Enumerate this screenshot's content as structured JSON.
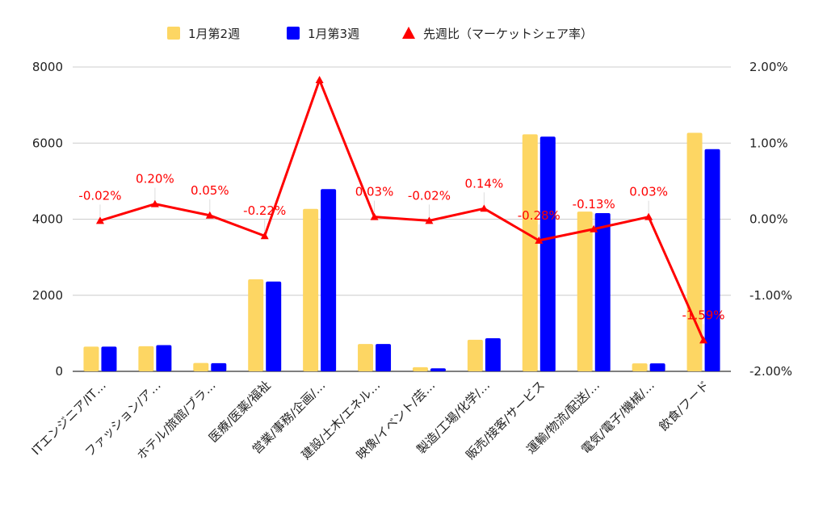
{
  "chart_data": {
    "type": "bar",
    "categories": [
      "ITエンジニア/IT…",
      "ファッション/ア…",
      "ホテル/旅館/ブラ…",
      "医療/医薬/福祉",
      "営業/事務/企画/…",
      "建設/土木/エネル…",
      "映像/イベント/芸…",
      "製造/工場/化学/…",
      "販売/接客/サービス",
      "運輸/物流/配送/…",
      "電気/電子/機械/…",
      "飲食/フード"
    ],
    "series": [
      {
        "name": "1月第2週",
        "kind": "bar",
        "axis": "left",
        "color": "#FDD663",
        "values": [
          650,
          660,
          220,
          2420,
          4270,
          720,
          110,
          830,
          6230,
          4200,
          210,
          6270
        ]
      },
      {
        "name": "1月第3週",
        "kind": "bar",
        "axis": "left",
        "color": "#0000FF",
        "values": [
          650,
          690,
          215,
          2360,
          4790,
          720,
          80,
          870,
          6170,
          4160,
          210,
          5840
        ]
      },
      {
        "name": "先週比（マーケットシェア率）",
        "kind": "line",
        "axis": "right",
        "color": "#FF0000",
        "values": [
          -0.02,
          0.2,
          0.05,
          -0.22,
          1.83,
          0.03,
          -0.02,
          0.14,
          -0.28,
          -0.13,
          0.03,
          -1.59
        ],
        "labels": [
          "-0.02%",
          "0.20%",
          "0.05%",
          "-0.22%",
          "",
          "0.03%",
          "-0.02%",
          "0.14%",
          "-0.28%",
          "-0.13%",
          "0.03%",
          "-1.59%"
        ]
      }
    ],
    "y_left": {
      "min": 0,
      "max": 8000,
      "ticks": [
        "0",
        "2000",
        "4000",
        "6000",
        "8000"
      ]
    },
    "y_right": {
      "min": -2,
      "max": 2,
      "ticks": [
        "-2.00%",
        "-1.00%",
        "0.00%",
        "1.00%",
        "2.00%"
      ]
    },
    "grid": true,
    "legend": "top-center"
  }
}
